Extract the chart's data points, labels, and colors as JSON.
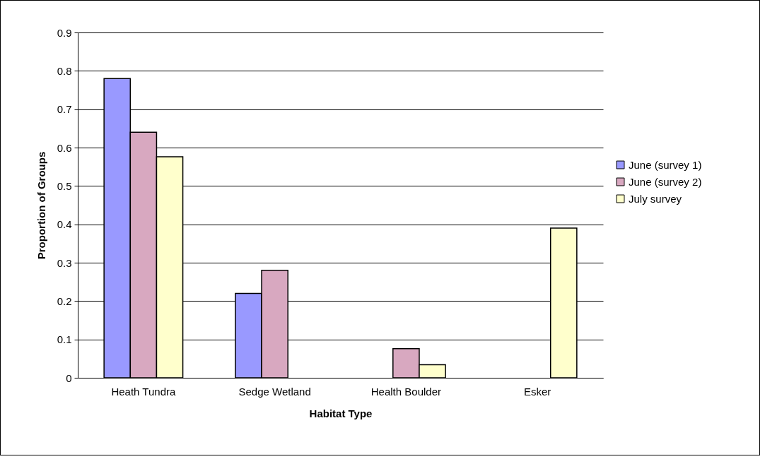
{
  "chart_data": {
    "type": "bar",
    "xlabel": "Habitat Type",
    "ylabel": "Proportion of Groups",
    "categories": [
      "Heath Tundra",
      "Sedge Wetland",
      "Health Boulder",
      "Esker"
    ],
    "series": [
      {
        "name": "June (survey 1)",
        "color": "#9999ff",
        "values": [
          0.78,
          0.22,
          null,
          null
        ]
      },
      {
        "name": "June (survey 2)",
        "color": "#d8a8c0",
        "values": [
          0.64,
          0.28,
          0.076,
          null
        ]
      },
      {
        "name": "July survey",
        "color": "#ffffcc",
        "values": [
          0.576,
          null,
          0.034,
          0.39
        ]
      }
    ],
    "ylim": [
      0,
      0.9
    ],
    "yticks": [
      0,
      0.1,
      0.2,
      0.3,
      0.4,
      0.5,
      0.6,
      0.7,
      0.8,
      0.9
    ],
    "grid": "y",
    "legend": "right"
  }
}
